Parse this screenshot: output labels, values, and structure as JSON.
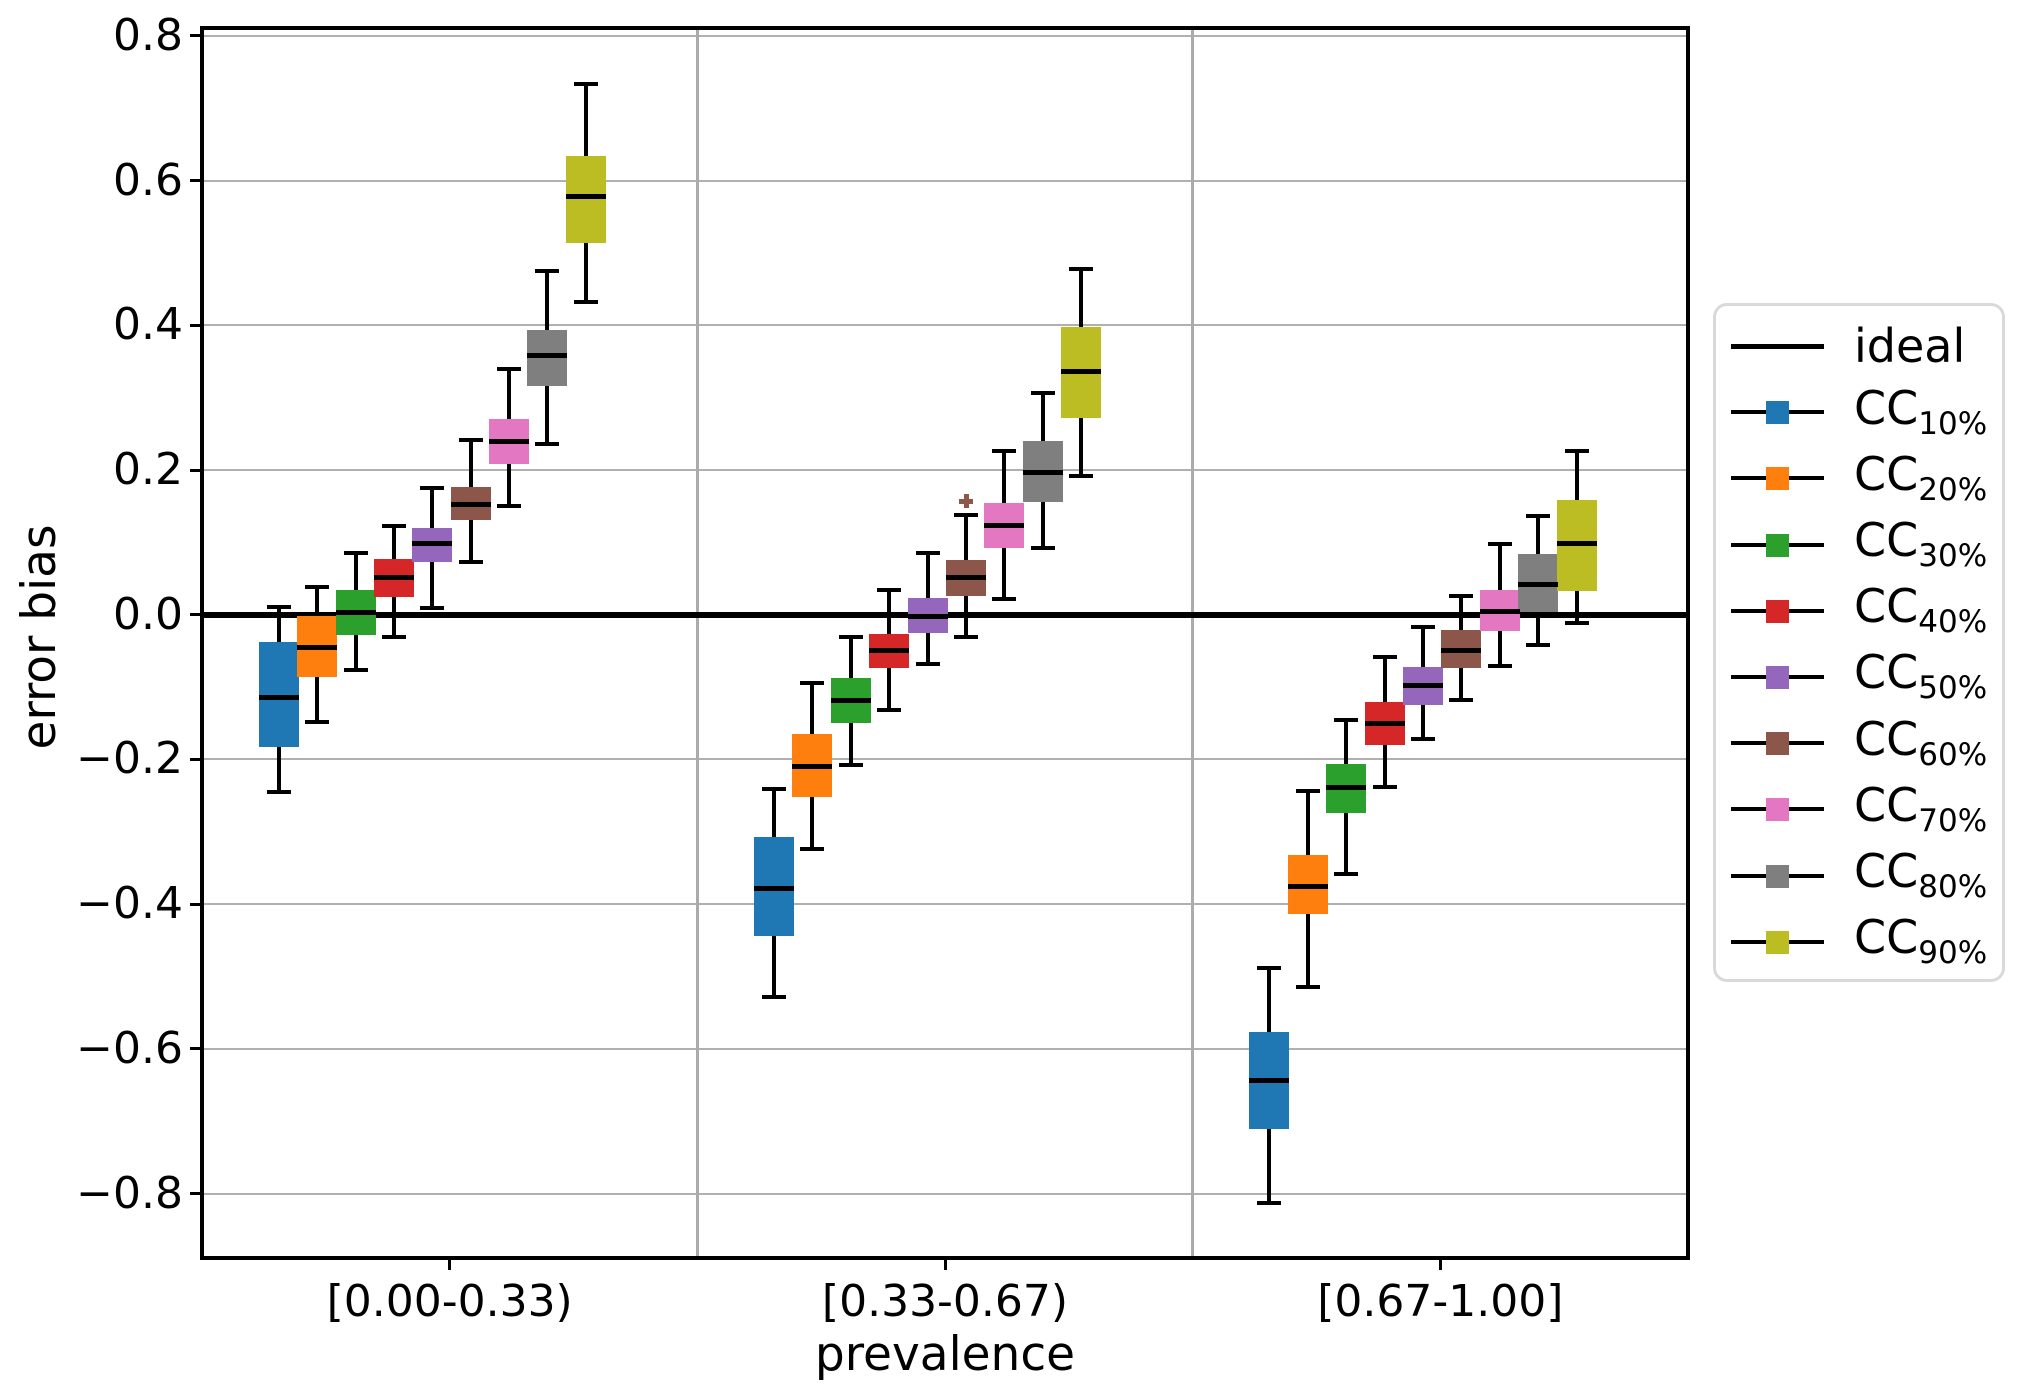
{
  "axes": {
    "x": {
      "label": "prevalence",
      "categories": [
        "[0.00-0.33)",
        "[0.33-0.67)",
        "[0.67-1.00]"
      ]
    },
    "y": {
      "label": "error bias",
      "tick_labels": [
        "0.8",
        "0.6",
        "0.4",
        "0.2",
        "0.0",
        "−0.2",
        "−0.4",
        "−0.6",
        "−0.8"
      ],
      "tick_values": [
        0.8,
        0.6,
        0.4,
        0.2,
        0.0,
        -0.2,
        -0.4,
        -0.6,
        -0.8
      ],
      "lim": [
        -0.889,
        0.811
      ]
    }
  },
  "legend": {
    "items": [
      {
        "label": "ideal",
        "sub": "",
        "type": "line",
        "color": "#000000"
      },
      {
        "label": "CC",
        "sub": "10%",
        "type": "box",
        "color": "#1f77b4"
      },
      {
        "label": "CC",
        "sub": "20%",
        "type": "box",
        "color": "#ff7f0e"
      },
      {
        "label": "CC",
        "sub": "30%",
        "type": "box",
        "color": "#2ca02c"
      },
      {
        "label": "CC",
        "sub": "40%",
        "type": "box",
        "color": "#d62728"
      },
      {
        "label": "CC",
        "sub": "50%",
        "type": "box",
        "color": "#9467bd"
      },
      {
        "label": "CC",
        "sub": "60%",
        "type": "box",
        "color": "#8c564b"
      },
      {
        "label": "CC",
        "sub": "70%",
        "type": "box",
        "color": "#e377c2"
      },
      {
        "label": "CC",
        "sub": "80%",
        "type": "box",
        "color": "#7f7f7f"
      },
      {
        "label": "CC",
        "sub": "90%",
        "type": "box",
        "color": "#bcbd22"
      }
    ]
  },
  "chart_data": {
    "type": "boxplot-grouped",
    "title": "",
    "xlabel": "prevalence",
    "ylabel": "error bias",
    "grid": true,
    "legend_position": "right-outside",
    "ideal_line": {
      "label": "ideal",
      "value": 0.0,
      "color": "#000000"
    },
    "categories": [
      "[0.00-0.33)",
      "[0.33-0.67)",
      "[0.67-1.00]"
    ],
    "ylim": [
      -0.889,
      0.811
    ],
    "series": [
      {
        "name": "CC10%",
        "color": "#1f77b4",
        "boxes": [
          {
            "whislo": -0.245,
            "q1": -0.183,
            "med": -0.114,
            "q3": -0.038,
            "whishi": 0.011,
            "fliers": []
          },
          {
            "whislo": -0.528,
            "q1": -0.444,
            "med": -0.378,
            "q3": -0.307,
            "whishi": -0.241,
            "fliers": []
          },
          {
            "whislo": -0.813,
            "q1": -0.711,
            "med": -0.644,
            "q3": -0.577,
            "whishi": -0.488,
            "fliers": []
          }
        ]
      },
      {
        "name": "CC20%",
        "color": "#ff7f0e",
        "boxes": [
          {
            "whislo": -0.148,
            "q1": -0.086,
            "med": -0.045,
            "q3": -0.002,
            "whishi": 0.038,
            "fliers": []
          },
          {
            "whislo": -0.324,
            "q1": -0.252,
            "med": -0.209,
            "q3": -0.165,
            "whishi": -0.094,
            "fliers": []
          },
          {
            "whislo": -0.515,
            "q1": -0.414,
            "med": -0.376,
            "q3": -0.332,
            "whishi": -0.244,
            "fliers": []
          }
        ]
      },
      {
        "name": "CC30%",
        "color": "#2ca02c",
        "boxes": [
          {
            "whislo": -0.076,
            "q1": -0.028,
            "med": 0.003,
            "q3": 0.034,
            "whishi": 0.086,
            "fliers": []
          },
          {
            "whislo": -0.208,
            "q1": -0.15,
            "med": -0.118,
            "q3": -0.087,
            "whishi": -0.031,
            "fliers": []
          },
          {
            "whislo": -0.358,
            "q1": -0.274,
            "med": -0.239,
            "q3": -0.206,
            "whishi": -0.145,
            "fliers": []
          }
        ]
      },
      {
        "name": "CC40%",
        "color": "#d62728",
        "boxes": [
          {
            "whislo": -0.031,
            "q1": 0.025,
            "med": 0.052,
            "q3": 0.077,
            "whishi": 0.123,
            "fliers": []
          },
          {
            "whislo": -0.132,
            "q1": -0.074,
            "med": -0.049,
            "q3": -0.026,
            "whishi": 0.034,
            "fliers": []
          },
          {
            "whislo": -0.238,
            "q1": -0.18,
            "med": -0.15,
            "q3": -0.121,
            "whishi": -0.058,
            "fliers": []
          }
        ]
      },
      {
        "name": "CC50%",
        "color": "#9467bd",
        "boxes": [
          {
            "whislo": 0.009,
            "q1": 0.073,
            "med": 0.098,
            "q3": 0.12,
            "whishi": 0.175,
            "fliers": []
          },
          {
            "whislo": -0.068,
            "q1": -0.025,
            "med": -0.002,
            "q3": 0.023,
            "whishi": 0.085,
            "fliers": []
          },
          {
            "whislo": -0.172,
            "q1": -0.125,
            "med": -0.098,
            "q3": -0.072,
            "whishi": -0.017,
            "fliers": []
          }
        ]
      },
      {
        "name": "CC60%",
        "color": "#8c564b",
        "boxes": [
          {
            "whislo": 0.073,
            "q1": 0.131,
            "med": 0.153,
            "q3": 0.177,
            "whishi": 0.242,
            "fliers": []
          },
          {
            "whislo": -0.031,
            "q1": 0.026,
            "med": 0.051,
            "q3": 0.076,
            "whishi": 0.138,
            "fliers": [
              0.157
            ]
          },
          {
            "whislo": -0.118,
            "q1": -0.074,
            "med": -0.049,
            "q3": -0.021,
            "whishi": 0.026,
            "fliers": []
          }
        ]
      },
      {
        "name": "CC70%",
        "color": "#e377c2",
        "boxes": [
          {
            "whislo": 0.15,
            "q1": 0.208,
            "med": 0.24,
            "q3": 0.271,
            "whishi": 0.34,
            "fliers": []
          },
          {
            "whislo": 0.022,
            "q1": 0.092,
            "med": 0.123,
            "q3": 0.155,
            "whishi": 0.226,
            "fliers": []
          },
          {
            "whislo": -0.071,
            "q1": -0.023,
            "med": 0.004,
            "q3": 0.034,
            "whishi": 0.098,
            "fliers": []
          }
        ]
      },
      {
        "name": "CC80%",
        "color": "#7f7f7f",
        "boxes": [
          {
            "whislo": 0.236,
            "q1": 0.316,
            "med": 0.358,
            "q3": 0.394,
            "whishi": 0.475,
            "fliers": []
          },
          {
            "whislo": 0.092,
            "q1": 0.156,
            "med": 0.196,
            "q3": 0.24,
            "whishi": 0.307,
            "fliers": []
          },
          {
            "whislo": -0.042,
            "q1": 0.004,
            "med": 0.042,
            "q3": 0.084,
            "whishi": 0.136,
            "fliers": []
          }
        ]
      },
      {
        "name": "CC90%",
        "color": "#bcbd22",
        "boxes": [
          {
            "whislo": 0.432,
            "q1": 0.514,
            "med": 0.578,
            "q3": 0.634,
            "whishi": 0.734,
            "fliers": []
          },
          {
            "whislo": 0.192,
            "q1": 0.272,
            "med": 0.336,
            "q3": 0.398,
            "whishi": 0.478,
            "fliers": []
          },
          {
            "whislo": -0.011,
            "q1": 0.033,
            "med": 0.098,
            "q3": 0.159,
            "whishi": 0.226,
            "fliers": []
          }
        ]
      }
    ]
  }
}
